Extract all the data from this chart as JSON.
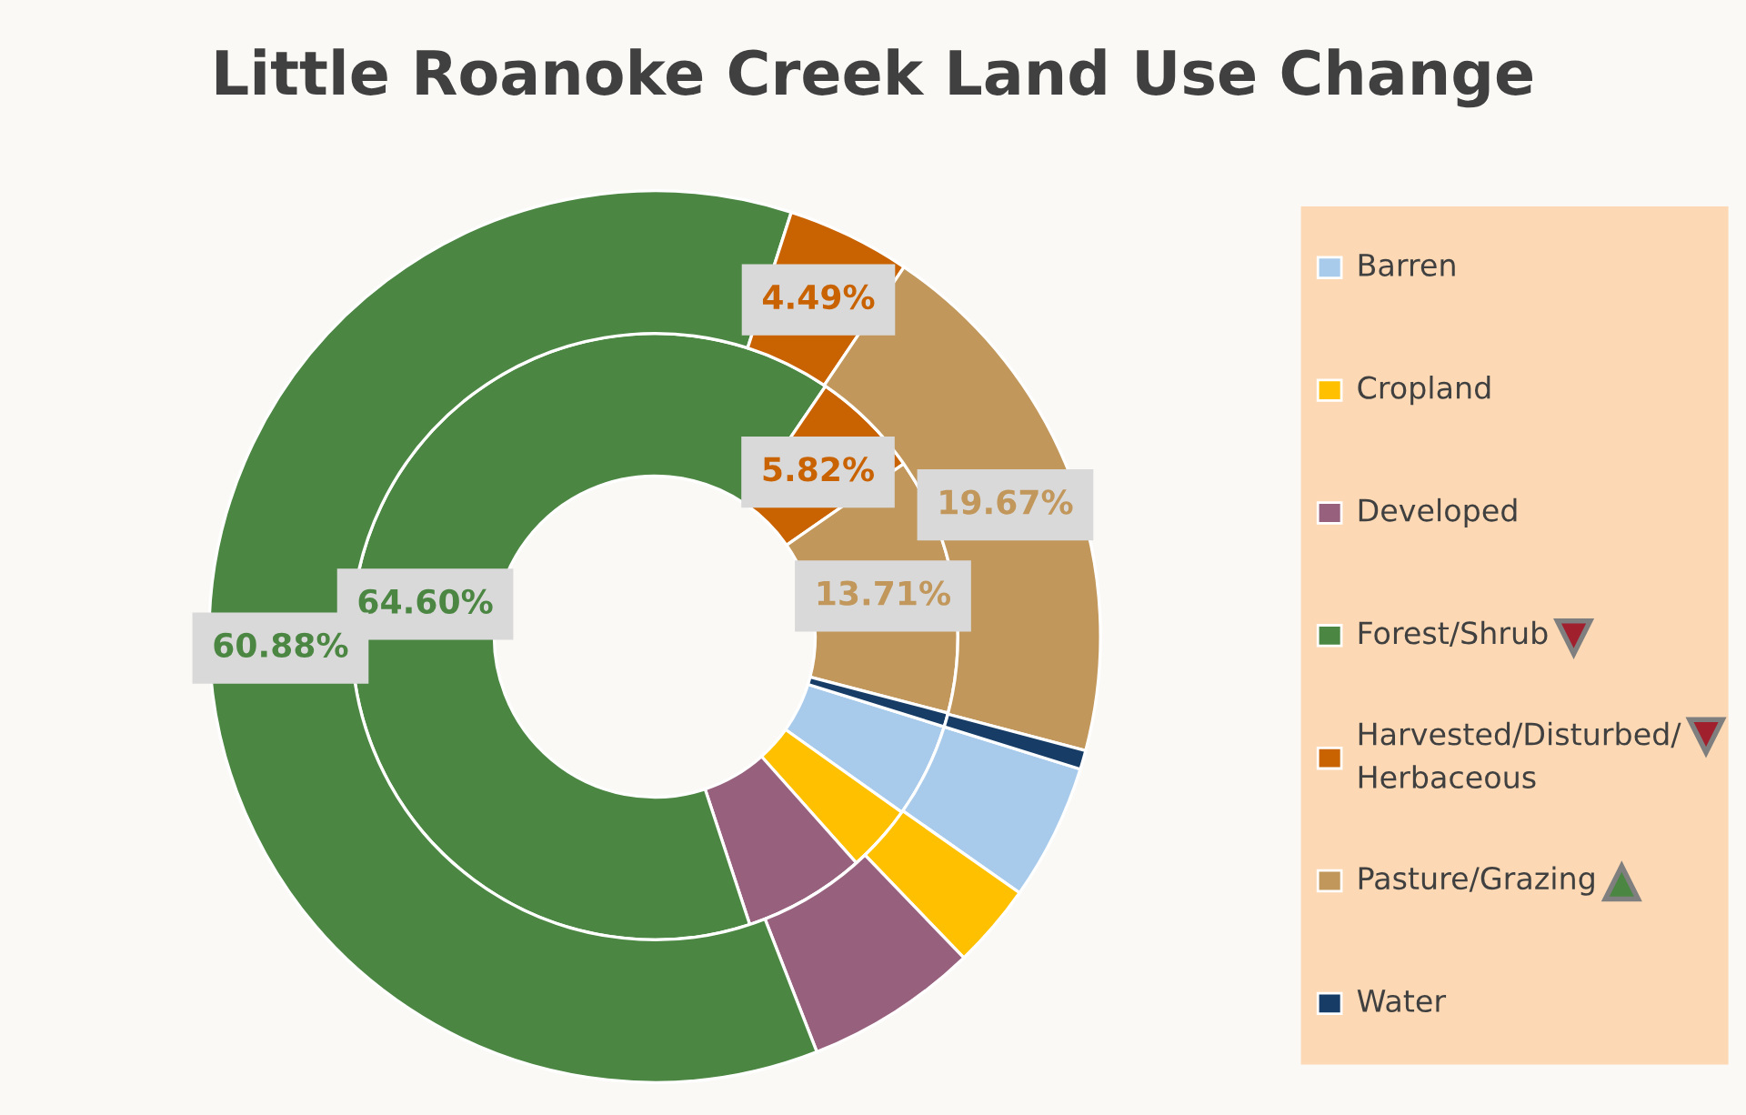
{
  "chart_data": {
    "type": "donut",
    "title": "Little Roanoke Creek Land Use Change",
    "categories": [
      "Barren",
      "Cropland",
      "Developed",
      "Forest/Shrub",
      "Harvested/Disturbed/\nHerbaceous",
      "Pasture/Grazing",
      "Water"
    ],
    "colors": [
      "#a9cbeb",
      "#ffc000",
      "#97607d",
      "#4c8643",
      "#c96302",
      "#c1975b",
      "#173d67"
    ],
    "series": [
      {
        "values": [
          5.03,
          3.58,
          6.51,
          64.6,
          5.82,
          13.71,
          0.75
        ],
        "value_labels": [
          null,
          null,
          null,
          "64.60%",
          "5.82%",
          "13.71%",
          null
        ]
      },
      {
        "values": [
          4.94,
          3.06,
          6.27,
          60.88,
          4.49,
          19.67,
          0.69
        ],
        "value_labels": [
          null,
          null,
          null,
          "60.88%",
          "4.49%",
          "19.67%",
          null
        ]
      }
    ],
    "legend": "right"
  }
}
